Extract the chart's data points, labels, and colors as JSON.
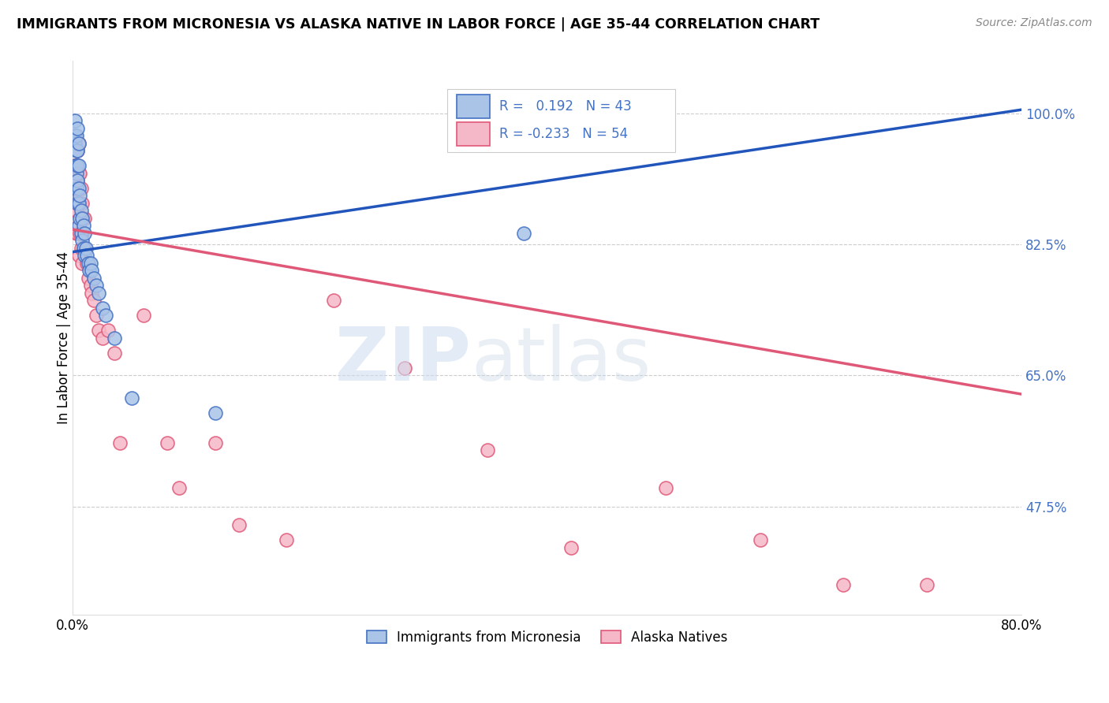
{
  "title": "IMMIGRANTS FROM MICRONESIA VS ALASKA NATIVE IN LABOR FORCE | AGE 35-44 CORRELATION CHART",
  "source": "Source: ZipAtlas.com",
  "ylabel": "In Labor Force | Age 35-44",
  "y_ticks": [
    0.475,
    0.65,
    0.825,
    1.0
  ],
  "y_tick_labels": [
    "47.5%",
    "65.0%",
    "82.5%",
    "100.0%"
  ],
  "x_range": [
    0.0,
    0.8
  ],
  "y_range": [
    0.33,
    1.07
  ],
  "blue_R": 0.192,
  "blue_N": 43,
  "pink_R": -0.233,
  "pink_N": 54,
  "blue_color": "#aac4e8",
  "pink_color": "#f5b8c8",
  "blue_edge_color": "#4472c4",
  "pink_edge_color": "#e05878",
  "blue_line_color": "#2255bb",
  "pink_line_color": "#e05878",
  "label_color": "#4472c4",
  "blue_line_y0": 0.815,
  "blue_line_y1": 1.005,
  "pink_line_y0": 0.845,
  "pink_line_y1": 0.625,
  "blue_scatter_x": [
    0.002,
    0.002,
    0.002,
    0.002,
    0.003,
    0.003,
    0.003,
    0.003,
    0.004,
    0.004,
    0.004,
    0.004,
    0.004,
    0.005,
    0.005,
    0.005,
    0.005,
    0.005,
    0.006,
    0.006,
    0.007,
    0.007,
    0.008,
    0.008,
    0.009,
    0.009,
    0.01,
    0.01,
    0.011,
    0.012,
    0.013,
    0.014,
    0.015,
    0.016,
    0.018,
    0.02,
    0.022,
    0.025,
    0.028,
    0.035,
    0.05,
    0.12,
    0.38
  ],
  "blue_scatter_y": [
    0.99,
    0.97,
    0.96,
    0.93,
    0.97,
    0.95,
    0.92,
    0.9,
    0.98,
    0.95,
    0.93,
    0.91,
    0.88,
    0.96,
    0.93,
    0.9,
    0.88,
    0.85,
    0.89,
    0.86,
    0.87,
    0.84,
    0.86,
    0.83,
    0.85,
    0.82,
    0.84,
    0.81,
    0.82,
    0.81,
    0.8,
    0.79,
    0.8,
    0.79,
    0.78,
    0.77,
    0.76,
    0.74,
    0.73,
    0.7,
    0.62,
    0.6,
    0.84
  ],
  "pink_scatter_x": [
    0.002,
    0.002,
    0.002,
    0.003,
    0.003,
    0.003,
    0.003,
    0.004,
    0.004,
    0.004,
    0.004,
    0.005,
    0.005,
    0.005,
    0.005,
    0.005,
    0.006,
    0.006,
    0.006,
    0.007,
    0.007,
    0.007,
    0.008,
    0.008,
    0.008,
    0.009,
    0.009,
    0.01,
    0.01,
    0.012,
    0.013,
    0.015,
    0.016,
    0.018,
    0.02,
    0.022,
    0.025,
    0.03,
    0.035,
    0.04,
    0.06,
    0.08,
    0.09,
    0.12,
    0.14,
    0.18,
    0.22,
    0.28,
    0.35,
    0.42,
    0.5,
    0.58,
    0.65,
    0.72
  ],
  "pink_scatter_y": [
    0.93,
    0.9,
    0.87,
    0.93,
    0.9,
    0.87,
    0.84,
    0.95,
    0.91,
    0.88,
    0.84,
    0.96,
    0.92,
    0.88,
    0.85,
    0.81,
    0.92,
    0.88,
    0.84,
    0.9,
    0.86,
    0.82,
    0.88,
    0.84,
    0.8,
    0.86,
    0.82,
    0.86,
    0.82,
    0.8,
    0.78,
    0.77,
    0.76,
    0.75,
    0.73,
    0.71,
    0.7,
    0.71,
    0.68,
    0.56,
    0.73,
    0.56,
    0.5,
    0.56,
    0.45,
    0.43,
    0.75,
    0.66,
    0.55,
    0.42,
    0.5,
    0.43,
    0.37,
    0.37
  ]
}
